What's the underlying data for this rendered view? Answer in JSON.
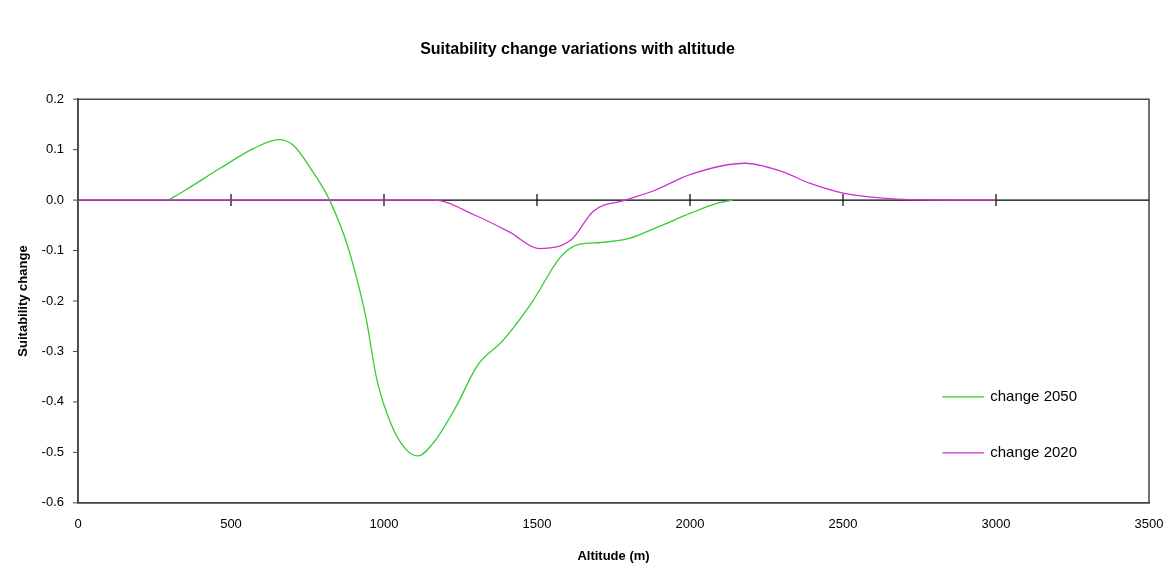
{
  "chart_data": {
    "type": "line",
    "title": "Suitability change variations with altitude",
    "xlabel": "Altitude (m)",
    "ylabel": "Suitability change",
    "xlim": [
      0,
      3500
    ],
    "xticks": [
      0,
      500,
      1000,
      1500,
      2000,
      2500,
      3000,
      3500
    ],
    "ylim": [
      -0.6,
      0.2
    ],
    "yticks": [
      -0.6,
      -0.5,
      -0.4,
      -0.3,
      -0.2,
      -0.1,
      {
        "value": 0,
        "label": "0.0"
      },
      0.1,
      0.2
    ],
    "grid": false,
    "ref_lines": [
      {
        "axis": "y",
        "value": 0,
        "color": "#000000",
        "line_style": "solid"
      }
    ],
    "legend": "bottom right",
    "marker": "none",
    "line_style": "solid",
    "series": [
      {
        "name": "change 2050",
        "color": "#33cc33",
        "x": [
          296,
          349,
          467,
          573,
          656,
          703,
          762,
          822,
          881,
          940,
          976,
          1023,
          1070,
          1111,
          1164,
          1235,
          1306,
          1389,
          1484,
          1578,
          1637,
          1708,
          1801,
          1896,
          2002,
          2085,
          2139
        ],
        "values": [
          0,
          0.019,
          0.064,
          0.102,
          0.12,
          0.109,
          0.061,
          0,
          -0.091,
          -0.23,
          -0.354,
          -0.444,
          -0.493,
          -0.507,
          -0.479,
          -0.41,
          -0.327,
          -0.278,
          -0.202,
          -0.112,
          -0.088,
          -0.084,
          -0.076,
          -0.053,
          -0.026,
          -0.007,
          0
        ]
      },
      {
        "name": "change 2020",
        "color": "#cc33cc",
        "x": [
          0,
          500,
          1000,
          1164,
          1294,
          1412,
          1506,
          1613,
          1684,
          1789,
          1884,
          2002,
          2180,
          2299,
          2393,
          2500,
          2630,
          2725,
          3000
        ],
        "values": [
          0,
          0,
          0,
          0,
          -0.029,
          -0.064,
          -0.096,
          -0.078,
          -0.022,
          0,
          0.019,
          0.051,
          0.073,
          0.057,
          0.033,
          0.014,
          0.004,
          0.001,
          0
        ]
      }
    ]
  }
}
